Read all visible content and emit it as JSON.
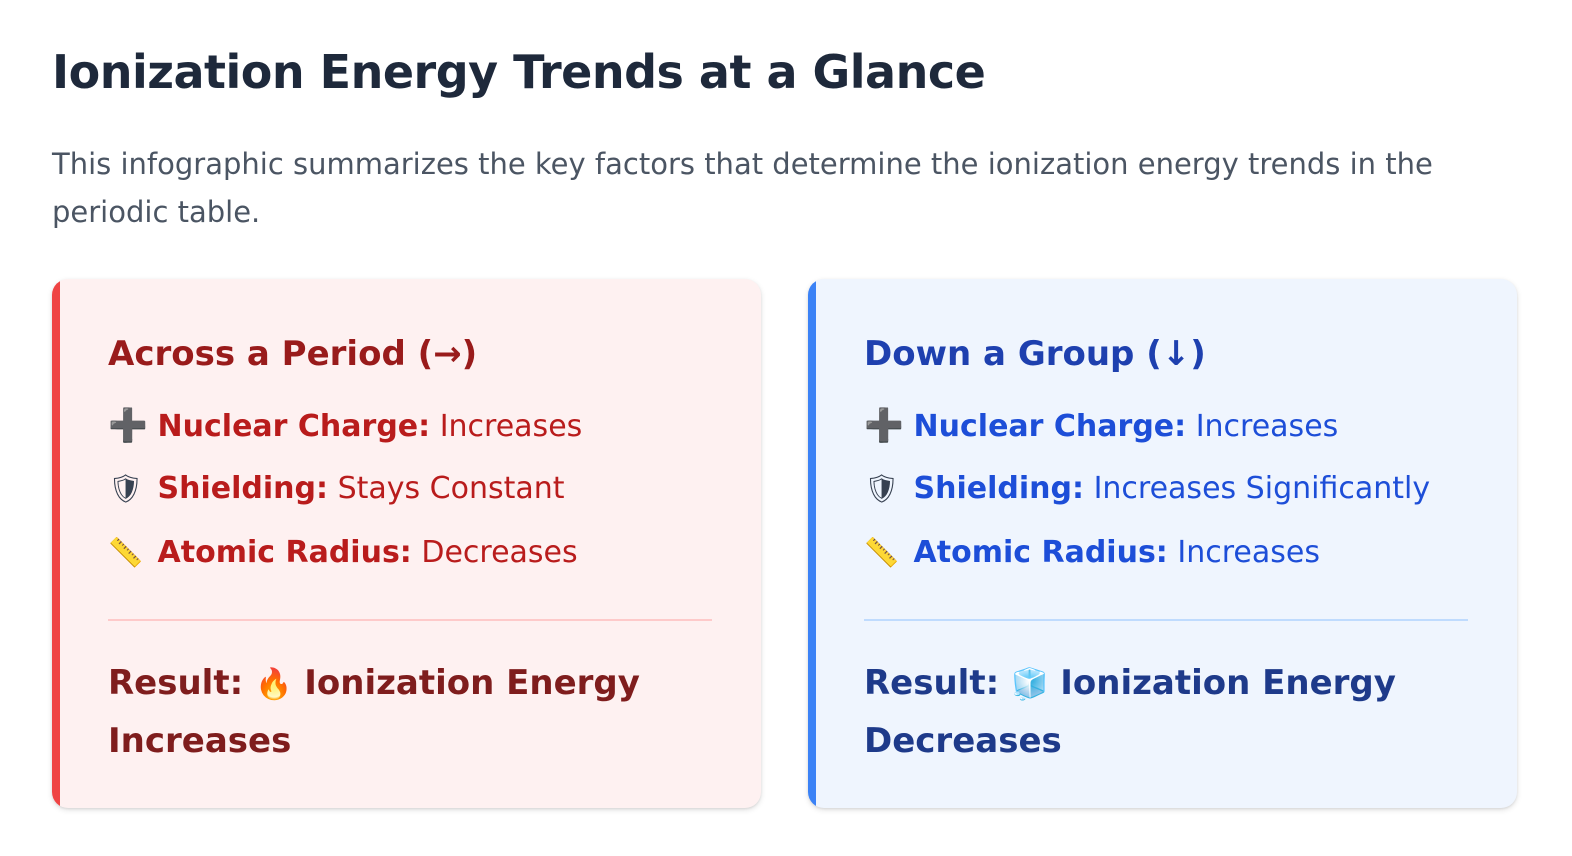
{
  "header": {
    "title": "Ionization Energy Trends at a Glance",
    "intro": "This infographic summarizes the key factors that determine the ionization energy trends in the periodic table."
  },
  "cards": [
    {
      "title": "Across a Period (→)",
      "accent_color": "#ef4444",
      "factors": [
        {
          "icon": "➕",
          "icon_name": "plus-icon",
          "label": "Nuclear Charge:",
          "value": "Increases"
        },
        {
          "icon": "🛡",
          "icon_name": "shield-icon",
          "label": "Shielding:",
          "value": "Stays Constant"
        },
        {
          "icon": "📏",
          "icon_name": "ruler-icon",
          "label": "Atomic Radius:",
          "value": "Decreases"
        }
      ],
      "result": {
        "label": "Result:",
        "icon": "🔥",
        "icon_name": "fire-icon",
        "text": "Ionization Energy Increases"
      }
    },
    {
      "title": "Down a Group (↓)",
      "accent_color": "#3b82f6",
      "factors": [
        {
          "icon": "➕",
          "icon_name": "plus-icon",
          "label": "Nuclear Charge:",
          "value": "Increases"
        },
        {
          "icon": "🛡",
          "icon_name": "shield-icon",
          "label": "Shielding:",
          "value": "Increases Significantly"
        },
        {
          "icon": "📏",
          "icon_name": "ruler-icon",
          "label": "Atomic Radius:",
          "value": "Increases"
        }
      ],
      "result": {
        "label": "Result:",
        "icon": "🧊",
        "icon_name": "ice-cube-icon",
        "text": "Ionization Energy Decreases"
      }
    }
  ]
}
